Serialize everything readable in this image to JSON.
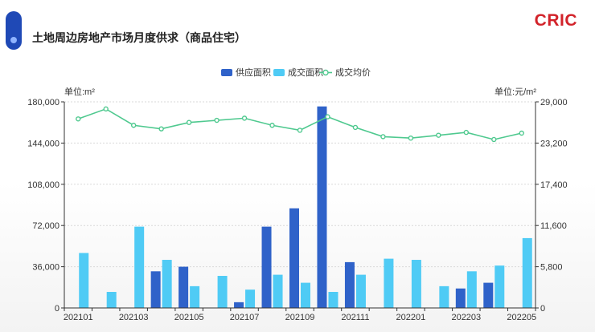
{
  "header": {
    "title": "土地周边房地产市场月度供求（商品住宅）",
    "brand": "CRIC"
  },
  "colors": {
    "supply": "#2f62c9",
    "deal": "#4fcbf5",
    "price": "#4fc98f",
    "grid": "#d9d9d9",
    "brand": "#d2232a"
  },
  "chart_data": {
    "type": "bar",
    "units": {
      "left": "单位:m²",
      "right": "单位:元/m²"
    },
    "legend": [
      "供应面积",
      "成交面积",
      "成交均价"
    ],
    "legend_position": "top-center",
    "categories": [
      "202101",
      "202102",
      "202103",
      "202104",
      "202105",
      "202106",
      "202107",
      "202108",
      "202109",
      "202110",
      "202111",
      "202112",
      "202201",
      "202202",
      "202203",
      "202204",
      "202205"
    ],
    "x_labels": [
      "202101",
      "202103",
      "202105",
      "202107",
      "202109",
      "202111",
      "202201",
      "202203",
      "202205"
    ],
    "series": [
      {
        "name": "供应面积",
        "type": "bar",
        "axis": "left",
        "values": [
          0,
          0,
          0,
          32000,
          36000,
          0,
          5000,
          71000,
          87000,
          176000,
          40000,
          0,
          0,
          0,
          17000,
          22000,
          0
        ]
      },
      {
        "name": "成交面积",
        "type": "bar",
        "axis": "left",
        "values": [
          48000,
          14000,
          71000,
          42000,
          19000,
          28000,
          16000,
          29000,
          22000,
          14000,
          29000,
          43000,
          42000,
          19000,
          32000,
          37000,
          61000
        ]
      },
      {
        "name": "成交均价",
        "type": "line",
        "axis": "right",
        "values": [
          26600,
          28000,
          25700,
          25200,
          26100,
          26400,
          26700,
          25700,
          25000,
          26900,
          25400,
          24100,
          23900,
          24300,
          24700,
          23700,
          24600
        ]
      }
    ],
    "y_left": {
      "min": 0,
      "max": 180000,
      "ticks": [
        0,
        36000,
        72000,
        108000,
        144000,
        180000
      ],
      "tick_labels": [
        "0",
        "36,000",
        "72,000",
        "108,000",
        "144,000",
        "180,000"
      ]
    },
    "y_right": {
      "min": 0,
      "max": 29000,
      "ticks": [
        0,
        5800,
        11600,
        17400,
        23200,
        29000
      ],
      "tick_labels": [
        "0",
        "5,800",
        "11,600",
        "17,400",
        "23,200",
        "29,000"
      ]
    },
    "grid": true
  }
}
